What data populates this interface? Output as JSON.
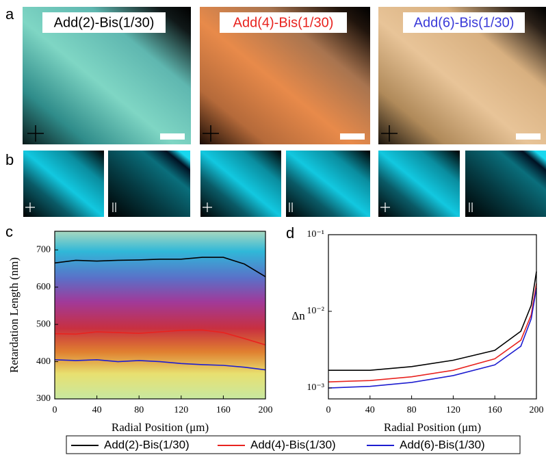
{
  "figure": {
    "panel_labels": [
      "a",
      "b",
      "c",
      "d"
    ],
    "image_titles": [
      {
        "text": "Add(2)-Bis(1/30)",
        "color": "#000000"
      },
      {
        "text": "Add(4)-Bis(1/30)",
        "color": "#e8231f"
      },
      {
        "text": "Add(6)-Bis(1/30)",
        "color": "#3a3ad8"
      }
    ]
  },
  "chart_data": [
    {
      "type": "line",
      "x_label": "Radial Position (μm)",
      "y_label": "Retardation Length (nm)",
      "x": [
        0,
        20,
        40,
        60,
        80,
        100,
        120,
        140,
        160,
        180,
        200
      ],
      "xlim": [
        0,
        200
      ],
      "xticks": [
        0,
        40,
        80,
        120,
        160,
        200
      ],
      "ylim": [
        300,
        750
      ],
      "yticks": [
        300,
        400,
        500,
        600,
        700
      ],
      "series": [
        {
          "name": "Add(2)-Bis(1/30)",
          "color": "#000000",
          "values": [
            665,
            672,
            670,
            672,
            673,
            675,
            675,
            680,
            680,
            662,
            628
          ]
        },
        {
          "name": "Add(4)-Bis(1/30)",
          "color": "#e8231f",
          "values": [
            475,
            474,
            480,
            478,
            476,
            480,
            484,
            485,
            478,
            462,
            445
          ]
        },
        {
          "name": "Add(6)-Bis(1/30)",
          "color": "#1d1dd0",
          "values": [
            405,
            403,
            405,
            400,
            403,
            400,
            395,
            392,
            390,
            385,
            378
          ]
        }
      ]
    },
    {
      "type": "line",
      "x_label": "Radial Position (μm)",
      "y_label": "Δn",
      "log_y": true,
      "x": [
        0,
        40,
        80,
        120,
        160,
        185,
        195,
        200
      ],
      "xlim": [
        0,
        200
      ],
      "xticks": [
        0,
        40,
        80,
        120,
        160,
        200
      ],
      "ylim": [
        0.00072,
        0.1
      ],
      "yticks": [
        {
          "value": 0.001,
          "label": "10⁻³"
        },
        {
          "value": 0.01,
          "label": "10⁻²"
        },
        {
          "value": 0.1,
          "label": "10⁻¹"
        }
      ],
      "series": [
        {
          "color": "#000000",
          "values": [
            0.0017,
            0.0017,
            0.0019,
            0.0023,
            0.0031,
            0.0055,
            0.012,
            0.033
          ]
        },
        {
          "color": "#e8231f",
          "values": [
            0.0012,
            0.00125,
            0.0014,
            0.0017,
            0.0024,
            0.0042,
            0.009,
            0.023
          ]
        },
        {
          "color": "#1d1dd0",
          "values": [
            0.001,
            0.00105,
            0.00118,
            0.00145,
            0.002,
            0.0035,
            0.008,
            0.02
          ]
        }
      ]
    }
  ]
}
